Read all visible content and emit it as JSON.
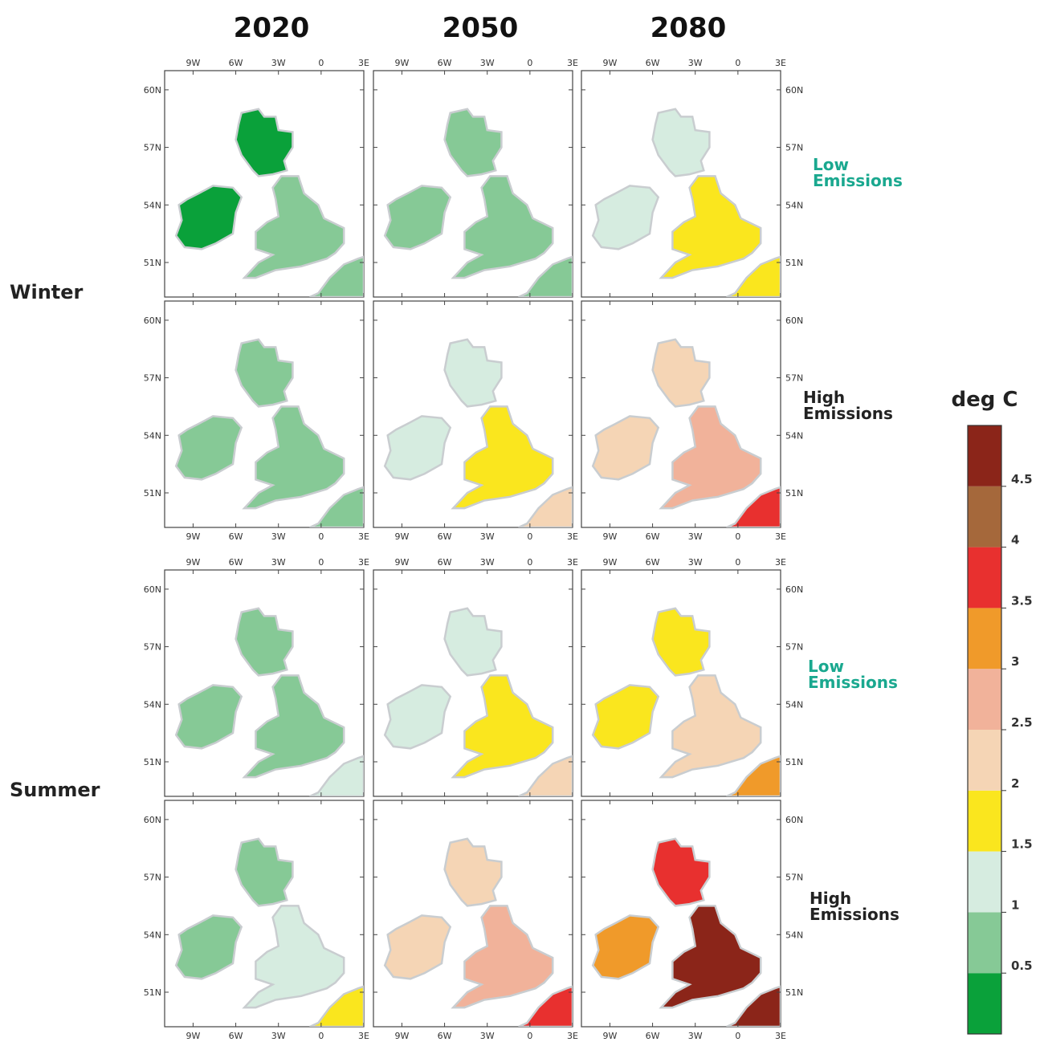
{
  "columns": [
    "2020",
    "2050",
    "2080"
  ],
  "rows": [
    {
      "season": "Winter",
      "scenario": [
        "Low",
        "Emissions"
      ],
      "scenario_color": "#1aa88f"
    },
    {
      "season": "",
      "scenario": [
        "High",
        "Emissions"
      ],
      "scenario_color": "#222222"
    },
    {
      "season": "Summer",
      "scenario": [
        "Low",
        "Emissions"
      ],
      "scenario_color": "#1aa88f"
    },
    {
      "season": "",
      "scenario": [
        "High",
        "Emissions"
      ],
      "scenario_color": "#222222"
    }
  ],
  "seasons": [
    "Winter",
    "Summer"
  ],
  "axes": {
    "lon_ticks": [
      "9W",
      "6W",
      "3W",
      "0",
      "3E"
    ],
    "lat_ticks": [
      "60N",
      "57N",
      "54N",
      "51N"
    ]
  },
  "legend": {
    "title": "deg C",
    "bins": [
      {
        "label": "",
        "color": "#0aa13a"
      },
      {
        "label": "0.5",
        "color": "#86c996"
      },
      {
        "label": "1",
        "color": "#d6ece0"
      },
      {
        "label": "1.5",
        "color": "#fae61e"
      },
      {
        "label": "2",
        "color": "#f5d5b5"
      },
      {
        "label": "2.5",
        "color": "#f1b29a"
      },
      {
        "label": "3",
        "color": "#f09a2a"
      },
      {
        "label": "3.5",
        "color": "#e8302f"
      },
      {
        "label": "4",
        "color": "#a5683b"
      },
      {
        "label": "4.5",
        "color": "#8b2519"
      }
    ]
  },
  "panels": [
    [
      {
        "scotland": 0,
        "ireland": 0,
        "england": 1,
        "europe": 1
      },
      {
        "scotland": 1,
        "ireland": 1,
        "england": 1,
        "europe": 1
      },
      {
        "scotland": 2,
        "ireland": 2,
        "england": 3,
        "europe": 3
      }
    ],
    [
      {
        "scotland": 1,
        "ireland": 1,
        "england": 1,
        "europe": 1
      },
      {
        "scotland": 2,
        "ireland": 2,
        "england": 3,
        "europe": 4
      },
      {
        "scotland": 4,
        "ireland": 4,
        "england": 5,
        "europe": 7
      }
    ],
    [
      {
        "scotland": 1,
        "ireland": 1,
        "england": 1,
        "europe": 2
      },
      {
        "scotland": 2,
        "ireland": 2,
        "england": 3,
        "europe": 4
      },
      {
        "scotland": 3,
        "ireland": 3,
        "england": 4,
        "europe": 6
      }
    ],
    [
      {
        "scotland": 1,
        "ireland": 1,
        "england": 2,
        "europe": 3
      },
      {
        "scotland": 4,
        "ireland": 4,
        "england": 5,
        "europe": 7
      },
      {
        "scotland": 7,
        "ireland": 6,
        "england": 9,
        "europe": 9
      }
    ]
  ]
}
